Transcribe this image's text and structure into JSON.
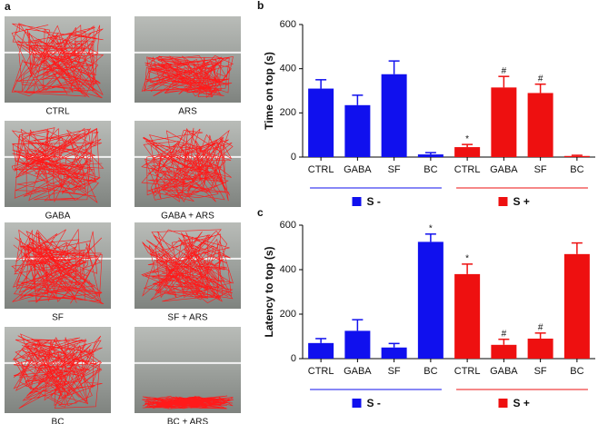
{
  "panel_a": {
    "label": "a",
    "tanks": [
      "CTRL",
      "ARS",
      "GABA",
      "GABA + ARS",
      "SF",
      "SF + ARS",
      "BC",
      "BC + ARS"
    ]
  },
  "chart_data": [
    {
      "type": "bar",
      "panel_label": "b",
      "ylabel": "Time on top (s)",
      "categories": [
        "CTRL",
        "GABA",
        "SF",
        "BC",
        "CTRL",
        "GABA",
        "SF",
        "BC"
      ],
      "ylim": [
        0,
        600
      ],
      "yticks": [
        0,
        200,
        400,
        600
      ],
      "series": [
        {
          "name": "S -",
          "color": "#1010ee",
          "values": [
            310,
            235,
            375,
            12,
            null,
            null,
            null,
            null
          ],
          "errors": [
            40,
            45,
            60,
            8,
            null,
            null,
            null,
            null
          ],
          "marks": [
            null,
            null,
            null,
            null,
            null,
            null,
            null,
            null
          ]
        },
        {
          "name": "S +",
          "color": "#ee1010",
          "values": [
            null,
            null,
            null,
            null,
            45,
            315,
            290,
            5
          ],
          "errors": [
            null,
            null,
            null,
            null,
            12,
            50,
            40,
            3
          ],
          "marks": [
            null,
            null,
            null,
            null,
            "*",
            "#",
            "#",
            null
          ]
        }
      ]
    },
    {
      "type": "bar",
      "panel_label": "c",
      "ylabel": "Latency to top (s)",
      "categories": [
        "CTRL",
        "GABA",
        "SF",
        "BC",
        "CTRL",
        "GABA",
        "SF",
        "BC"
      ],
      "ylim": [
        0,
        600
      ],
      "yticks": [
        0,
        200,
        400,
        600
      ],
      "series": [
        {
          "name": "S -",
          "color": "#1010ee",
          "values": [
            70,
            125,
            50,
            525,
            null,
            null,
            null,
            null
          ],
          "errors": [
            20,
            50,
            18,
            35,
            null,
            null,
            null,
            null
          ],
          "marks": [
            null,
            null,
            null,
            "*",
            null,
            null,
            null,
            null
          ]
        },
        {
          "name": "S +",
          "color": "#ee1010",
          "values": [
            null,
            null,
            null,
            null,
            380,
            62,
            90,
            470
          ],
          "errors": [
            null,
            null,
            null,
            null,
            45,
            25,
            25,
            50
          ],
          "marks": [
            null,
            null,
            null,
            null,
            "*",
            "#",
            "#",
            null
          ]
        }
      ]
    }
  ]
}
